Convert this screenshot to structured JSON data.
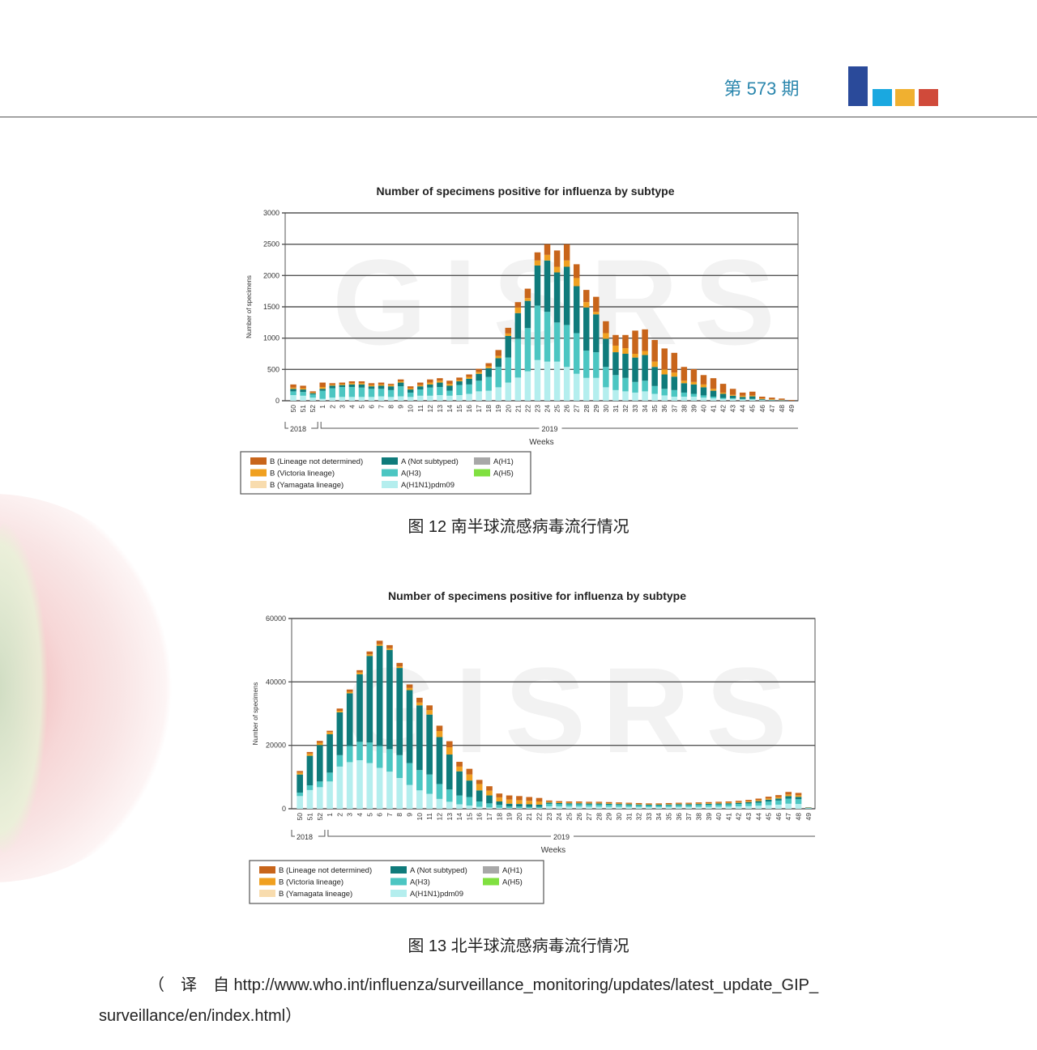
{
  "header": {
    "issue": "第 573 期",
    "logo_colors": [
      "#2a4a9a",
      "#1aa8e0",
      "#f0b030",
      "#d04a3a"
    ]
  },
  "legend": {
    "items": [
      {
        "key": "bnd",
        "label": "B (Lineage not determined)",
        "color": "#c8651b"
      },
      {
        "key": "vic",
        "label": "B (Victoria lineage)",
        "color": "#f0a020"
      },
      {
        "key": "yam",
        "label": "B (Yamagata lineage)",
        "color": "#f8dcae"
      },
      {
        "key": "ns",
        "label": "A (Not subtyped)",
        "color": "#0f7b7b"
      },
      {
        "key": "h3",
        "label": "A(H3)",
        "color": "#4cc6c2"
      },
      {
        "key": "h1n1",
        "label": "A(H1N1)pdm09",
        "color": "#b4eeee"
      },
      {
        "key": "h1",
        "label": "A(H1)",
        "color": "#a8a8a8"
      },
      {
        "key": "h5",
        "label": "A(H5)",
        "color": "#80e040"
      }
    ]
  },
  "chart_data": [
    {
      "type": "bar",
      "stacked": true,
      "title": "Number of specimens positive for influenza by subtype",
      "xlabel": "Weeks",
      "ylabel": "Number of specimens",
      "ylim": [
        0,
        3000
      ],
      "yticks": [
        0,
        500,
        1000,
        1500,
        2000,
        2500,
        3000
      ],
      "years": [
        "2018",
        "2019"
      ],
      "watermark": "GISRS",
      "caption": "图 12 南半球流感病毒流行情况",
      "categories": [
        "50",
        "51",
        "52",
        "1",
        "2",
        "3",
        "4",
        "5",
        "6",
        "7",
        "8",
        "9",
        "10",
        "11",
        "12",
        "13",
        "14",
        "15",
        "16",
        "17",
        "18",
        "19",
        "20",
        "21",
        "22",
        "23",
        "24",
        "25",
        "26",
        "27",
        "28",
        "29",
        "30",
        "31",
        "32",
        "33",
        "34",
        "35",
        "36",
        "37",
        "38",
        "39",
        "40",
        "41",
        "42",
        "43",
        "44",
        "45",
        "46",
        "47",
        "48",
        "49"
      ],
      "series": {
        "h1n1": [
          90,
          80,
          50,
          30,
          50,
          60,
          60,
          60,
          60,
          70,
          60,
          70,
          60,
          80,
          80,
          90,
          80,
          90,
          110,
          150,
          160,
          215,
          290,
          370,
          470,
          650,
          625,
          625,
          540,
          430,
          365,
          365,
          215,
          170,
          150,
          130,
          150,
          110,
          85,
          65,
          65,
          65,
          50,
          40,
          30,
          30,
          20,
          20,
          10,
          5,
          5,
          0
        ],
        "h3": [
          60,
          60,
          50,
          130,
          150,
          160,
          160,
          150,
          130,
          120,
          110,
          160,
          70,
          100,
          130,
          130,
          80,
          160,
          150,
          170,
          220,
          325,
          400,
          620,
          690,
          870,
          795,
          625,
          670,
          650,
          435,
          410,
          325,
          240,
          215,
          170,
          170,
          125,
          105,
          105,
          65,
          45,
          35,
          25,
          15,
          10,
          10,
          10,
          5,
          5,
          0,
          0
        ],
        "ns": [
          40,
          40,
          20,
          30,
          40,
          30,
          40,
          50,
          40,
          50,
          60,
          60,
          50,
          50,
          50,
          70,
          80,
          60,
          90,
          110,
          140,
          140,
          345,
          410,
          435,
          640,
          820,
          800,
          930,
          750,
          690,
          605,
          450,
          365,
          385,
          390,
          410,
          305,
          230,
          215,
          150,
          150,
          130,
          95,
          65,
          40,
          30,
          40,
          10,
          5,
          5,
          0
        ],
        "yam": [
          0,
          0,
          0,
          0,
          0,
          0,
          0,
          0,
          0,
          0,
          0,
          0,
          0,
          0,
          0,
          0,
          0,
          0,
          0,
          0,
          0,
          0,
          0,
          0,
          0,
          0,
          0,
          0,
          0,
          0,
          0,
          0,
          0,
          0,
          0,
          0,
          0,
          0,
          0,
          0,
          0,
          0,
          0,
          0,
          0,
          0,
          0,
          0,
          0,
          0,
          0,
          0
        ],
        "vic": [
          20,
          20,
          10,
          30,
          15,
          15,
          20,
          20,
          20,
          20,
          20,
          20,
          20,
          20,
          30,
          30,
          30,
          20,
          30,
          30,
          30,
          35,
          40,
          90,
          45,
          80,
          90,
          90,
          100,
          130,
          85,
          40,
          90,
          105,
          90,
          60,
          65,
          85,
          80,
          65,
          40,
          40,
          45,
          30,
          20,
          15,
          20,
          15,
          10,
          10,
          5,
          0
        ],
        "bnd": [
          50,
          40,
          20,
          70,
          25,
          25,
          30,
          30,
          30,
          30,
          20,
          30,
          30,
          40,
          50,
          40,
          50,
          40,
          40,
          50,
          50,
          95,
          90,
          85,
          150,
          130,
          170,
          260,
          260,
          220,
          195,
          240,
          190,
          170,
          210,
          370,
          345,
          345,
          335,
          315,
          220,
          205,
          150,
          170,
          140,
          95,
          50,
          60,
          30,
          25,
          20,
          10
        ]
      }
    },
    {
      "type": "bar",
      "stacked": true,
      "title": "Number of specimens positive for influenza by subtype",
      "xlabel": "Weeks",
      "ylabel": "Number of specimens",
      "ylim": [
        0,
        60000
      ],
      "yticks": [
        0,
        20000,
        40000,
        60000
      ],
      "years": [
        "2018",
        "2019"
      ],
      "watermark": "GISRS",
      "caption": "图 13 北半球流感病毒流行情况",
      "categories": [
        "50",
        "51",
        "52",
        "1",
        "2",
        "3",
        "4",
        "5",
        "6",
        "7",
        "8",
        "9",
        "10",
        "11",
        "12",
        "13",
        "14",
        "15",
        "16",
        "17",
        "18",
        "19",
        "20",
        "21",
        "22",
        "23",
        "24",
        "25",
        "26",
        "27",
        "28",
        "29",
        "30",
        "31",
        "32",
        "33",
        "34",
        "35",
        "36",
        "37",
        "38",
        "39",
        "40",
        "41",
        "42",
        "43",
        "44",
        "45",
        "46",
        "47",
        "48",
        "49"
      ],
      "series": {
        "h1n1": [
          4000,
          5900,
          6800,
          8600,
          13300,
          14700,
          15300,
          14400,
          12900,
          11700,
          9700,
          7500,
          5800,
          4700,
          3100,
          2200,
          1400,
          1000,
          600,
          400,
          300,
          200,
          200,
          200,
          200,
          780,
          720,
          690,
          690,
          660,
          660,
          630,
          600,
          570,
          540,
          510,
          510,
          540,
          570,
          570,
          600,
          630,
          660,
          690,
          750,
          840,
          960,
          1140,
          1290,
          1590,
          1500,
          150
        ],
        "h3": [
          1100,
          1500,
          1800,
          2800,
          3600,
          5100,
          5800,
          6500,
          6900,
          7100,
          7200,
          6900,
          6400,
          6100,
          4700,
          3900,
          2800,
          2700,
          1700,
          1300,
          900,
          500,
          500,
          400,
          400,
          780,
          720,
          690,
          690,
          660,
          660,
          630,
          600,
          570,
          540,
          510,
          510,
          540,
          570,
          570,
          600,
          630,
          660,
          690,
          750,
          840,
          960,
          1140,
          1290,
          1590,
          1500,
          150
        ],
        "ns": [
          5700,
          9300,
          11500,
          12100,
          13500,
          16600,
          21300,
          27300,
          31600,
          31300,
          27500,
          23000,
          20400,
          18900,
          14800,
          11000,
          7600,
          5200,
          3500,
          2500,
          1100,
          900,
          800,
          800,
          700,
          390,
          360,
          345,
          345,
          330,
          330,
          315,
          300,
          285,
          270,
          255,
          255,
          270,
          285,
          285,
          300,
          315,
          330,
          345,
          375,
          420,
          480,
          570,
          645,
          795,
          750,
          75
        ],
        "yam": [
          0,
          0,
          0,
          0,
          0,
          0,
          0,
          0,
          0,
          0,
          0,
          0,
          0,
          0,
          0,
          0,
          0,
          0,
          0,
          0,
          0,
          0,
          0,
          0,
          0,
          0,
          0,
          0,
          0,
          0,
          0,
          0,
          0,
          0,
          0,
          0,
          0,
          0,
          0,
          0,
          0,
          0,
          0,
          0,
          0,
          0,
          0,
          0,
          0,
          0,
          0,
          0
        ],
        "vic": [
          600,
          700,
          700,
          700,
          500,
          500,
          600,
          500,
          500,
          500,
          500,
          700,
          900,
          1400,
          1900,
          2300,
          1500,
          1900,
          2000,
          1500,
          1300,
          1300,
          1200,
          1100,
          1000,
          260,
          240,
          230,
          230,
          220,
          220,
          210,
          200,
          190,
          180,
          170,
          170,
          180,
          190,
          190,
          200,
          210,
          220,
          230,
          250,
          280,
          320,
          380,
          430,
          530,
          500,
          50
        ],
        "bnd": [
          500,
          500,
          600,
          400,
          700,
          700,
          700,
          900,
          1100,
          1000,
          1100,
          1100,
          1500,
          1500,
          1700,
          1900,
          1500,
          1800,
          1300,
          1400,
          1200,
          1300,
          1300,
          1200,
          1100,
          390,
          360,
          345,
          345,
          330,
          330,
          315,
          300,
          285,
          270,
          255,
          255,
          270,
          285,
          285,
          300,
          315,
          330,
          345,
          375,
          420,
          480,
          570,
          645,
          795,
          750,
          75
        ]
      }
    }
  ],
  "footer": {
    "line1": "（　译　自 http://www.who.int/influenza/surveillance_monitoring/updates/latest_update_GIP_",
    "line2": "surveillance/en/index.html）"
  }
}
